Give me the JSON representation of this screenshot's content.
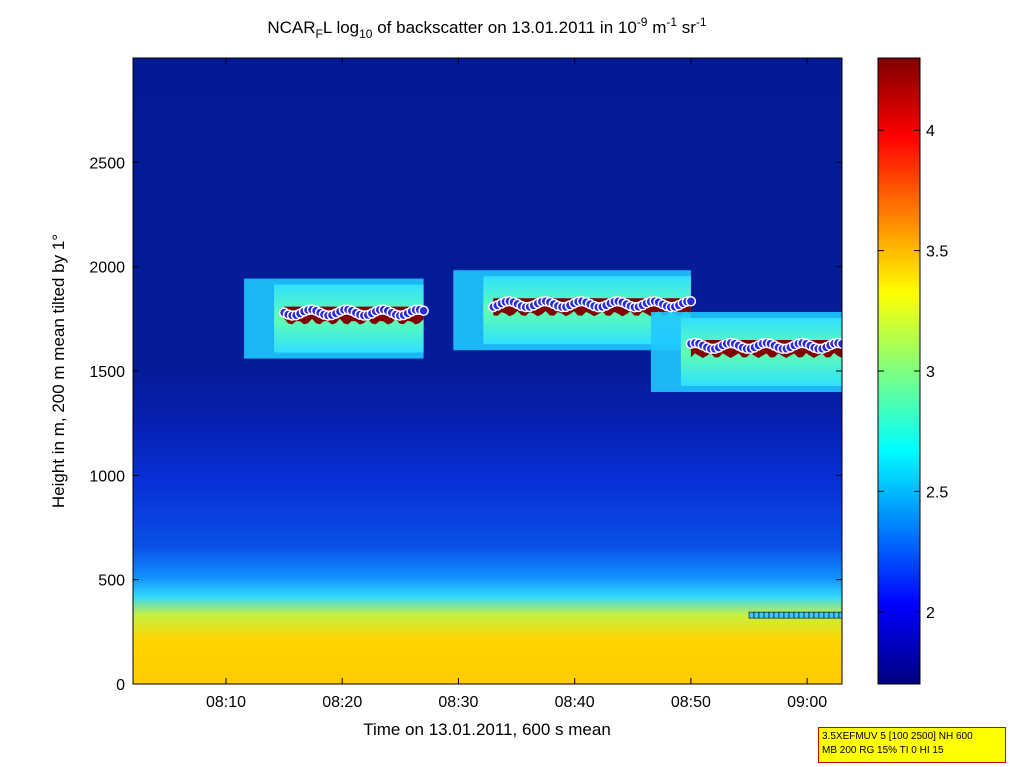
{
  "chart_data": {
    "type": "heatmap",
    "title_parts": [
      "NCAR",
      "F",
      "L log",
      "10",
      " of backscatter on 13.01.2011 in 10",
      "-9",
      " m",
      "-1",
      " sr",
      "-1"
    ],
    "xlabel": "Time on 13.01.2011, 600 s mean",
    "ylabel": "Height in m, 200 m mean tilted by 1°",
    "x_ticks": [
      "08:10",
      "08:20",
      "08:30",
      "08:40",
      "08:50",
      "09:00"
    ],
    "x_tick_minutes": [
      10,
      20,
      30,
      40,
      50,
      60
    ],
    "xlim_minutes": [
      2,
      63
    ],
    "x_unit_note": "",
    "y_ticks": [
      0,
      500,
      1000,
      1500,
      2000,
      2500
    ],
    "ylim": [
      0,
      3000
    ],
    "colorbar": {
      "ticks": [
        "2",
        "2.5",
        "3",
        "3.5",
        "4"
      ],
      "tick_values": [
        2,
        2.5,
        3,
        3.5,
        4
      ],
      "range": [
        1.7,
        4.3
      ],
      "colormap": "jet"
    },
    "cloud_layers": [
      {
        "start": "08:15",
        "end": "08:27",
        "height_m": 1780
      },
      {
        "start": "08:33",
        "end": "08:50",
        "height_m": 1820
      },
      {
        "start": "08:50",
        "end": "09:03",
        "height_m": 1620
      }
    ],
    "boundary_layer_top_m": 330
  },
  "info_box": {
    "line1": "3.5XEFMUV 5 [100 2500] NH 600",
    "line2": "MB 200 RG 15% TI 0 HI 15"
  },
  "colors": {
    "background_low": "#00007f",
    "cloud_base_marker": "#2b2bd9",
    "cloud_marker_edge": "#ffffff",
    "cloud_core": "#800000"
  }
}
